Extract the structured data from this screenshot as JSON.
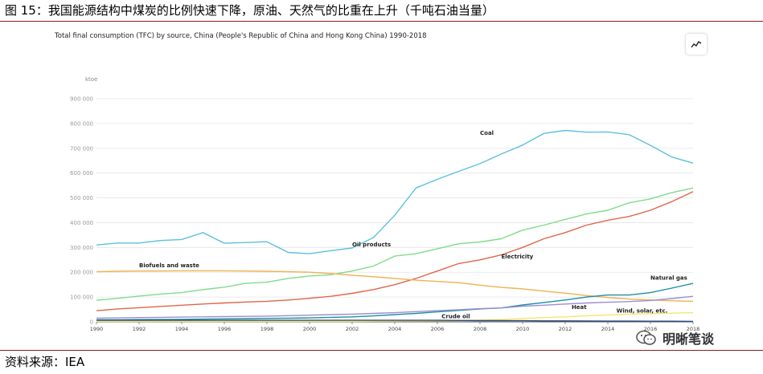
{
  "figure_title": "图 15：我国能源结构中煤炭的比例快速下降，原油、天然气的比重在上升（千吨石油当量）",
  "source_note": "资料来源：IEA",
  "watermark": {
    "text": "明晰笔谈",
    "icon": "wechat-icon"
  },
  "expand_icon": "expand-chart-icon",
  "colors": {
    "Coal": "#5cc0e0",
    "Oil products": "#7fdc8c",
    "Electricity": "#e0664a",
    "Biofuels and waste": "#f0b050",
    "Natural gas": "#1f8fa0",
    "Heat": "#9a8fd0",
    "Wind, solar, etc.": "#f5e66a",
    "Crude oil": "#2c4a80"
  },
  "chart_data": {
    "type": "line",
    "title": "Total final consumption (TFC) by source, China (People's Republic of China and Hong Kong China) 1990-2018",
    "ylabel": "ktoe",
    "xlabel": "",
    "ylim": [
      0,
      900000
    ],
    "yticks": [
      "0",
      "100 000",
      "200 000",
      "300 000",
      "400 000",
      "500 000",
      "600 000",
      "700 000",
      "800 000",
      "900 000"
    ],
    "x": [
      1990,
      1991,
      1992,
      1993,
      1994,
      1995,
      1996,
      1997,
      1998,
      1999,
      2000,
      2001,
      2002,
      2003,
      2004,
      2005,
      2006,
      2007,
      2008,
      2009,
      2010,
      2011,
      2012,
      2013,
      2014,
      2015,
      2016,
      2017,
      2018
    ],
    "xticks": [
      "1990",
      "1992",
      "1994",
      "1996",
      "1998",
      "2000",
      "2002",
      "2004",
      "2006",
      "2008",
      "2010",
      "2012",
      "2014",
      "2016",
      "2018"
    ],
    "series": [
      {
        "name": "Coal",
        "label": "Coal",
        "values": [
          310000,
          318000,
          318000,
          328000,
          332000,
          360000,
          317000,
          320000,
          323000,
          280000,
          275000,
          287000,
          298000,
          340000,
          430000,
          540000,
          575000,
          607000,
          638000,
          677000,
          713000,
          760000,
          772000,
          765000,
          766000,
          755000,
          712000,
          665000,
          640000
        ]
      },
      {
        "name": "Oil products",
        "label": "Oil products",
        "values": [
          87000,
          95000,
          104000,
          112000,
          118000,
          130000,
          140000,
          155000,
          160000,
          175000,
          185000,
          190000,
          205000,
          225000,
          265000,
          275000,
          295000,
          315000,
          322000,
          335000,
          370000,
          390000,
          413000,
          435000,
          450000,
          480000,
          496000,
          521000,
          540000
        ]
      },
      {
        "name": "Electricity",
        "label": "Electricity",
        "values": [
          45000,
          52000,
          57000,
          62000,
          67000,
          72000,
          76000,
          80000,
          83000,
          88000,
          95000,
          103000,
          115000,
          130000,
          150000,
          175000,
          205000,
          235000,
          250000,
          270000,
          300000,
          335000,
          360000,
          390000,
          410000,
          425000,
          450000,
          485000,
          525000
        ]
      },
      {
        "name": "Biofuels and waste",
        "label": "Biofuels and waste",
        "values": [
          202000,
          204000,
          205000,
          205000,
          206000,
          206000,
          206000,
          205000,
          204000,
          202000,
          200000,
          195000,
          188000,
          182000,
          175000,
          168000,
          163000,
          158000,
          148000,
          139000,
          133000,
          124000,
          116000,
          106000,
          98000,
          92000,
          88000,
          85000,
          83000
        ]
      },
      {
        "name": "Natural gas",
        "label": "Natural gas",
        "values": [
          8000,
          8500,
          9000,
          9500,
          10000,
          11000,
          12000,
          13000,
          14000,
          15000,
          16000,
          18000,
          20000,
          24000,
          29000,
          34000,
          40000,
          46000,
          52000,
          56000,
          68000,
          78000,
          88000,
          100000,
          108000,
          108000,
          118000,
          136000,
          155000
        ]
      },
      {
        "name": "Heat",
        "label": "Heat",
        "values": [
          15000,
          16000,
          17000,
          18000,
          19000,
          20000,
          21000,
          22000,
          23000,
          25000,
          27000,
          29000,
          31000,
          34000,
          37000,
          41000,
          45000,
          49000,
          53000,
          56000,
          63000,
          67000,
          72000,
          76000,
          79000,
          82000,
          86000,
          94000,
          103000
        ]
      },
      {
        "name": "Wind, solar, etc.",
        "label": "Wind, solar, etc.",
        "values": [
          2000,
          2000,
          2000,
          2000,
          2000,
          2000,
          2000,
          2000,
          2000,
          2000,
          2000,
          2000,
          2000,
          2500,
          3000,
          3500,
          4000,
          5000,
          7000,
          9000,
          13000,
          17000,
          20000,
          24000,
          28000,
          31000,
          33000,
          35000,
          37000
        ]
      },
      {
        "name": "Crude oil",
        "label": "Crude oil",
        "values": [
          6000,
          6000,
          6000,
          6000,
          6000,
          6000,
          6000,
          6000,
          6000,
          6000,
          6000,
          6000,
          6000,
          6000,
          6000,
          6000,
          6000,
          5500,
          5000,
          5000,
          4500,
          4000,
          4000,
          3500,
          3000,
          3000,
          2500,
          2500,
          2000
        ]
      }
    ],
    "annotations": [
      {
        "text": "Coal",
        "series": "Coal",
        "at_year": 2008,
        "value": 755000
      },
      {
        "text": "Oil products",
        "series": "Oil products",
        "at_year": 2002,
        "value": 305000
      },
      {
        "text": "Electricity",
        "series": "Electricity",
        "at_year": 2009,
        "value": 255000
      },
      {
        "text": "Biofuels and waste",
        "series": "Biofuels and waste",
        "at_year": 1992,
        "value": 220000
      },
      {
        "text": "Natural gas",
        "series": "Natural gas",
        "at_year": 2016,
        "value": 170000
      },
      {
        "text": "Heat",
        "series": "Heat",
        "at_year": 2012.3,
        "value": 52000
      },
      {
        "text": "Wind, solar, etc.",
        "series": "Wind, solar, etc.",
        "at_year": 2014.4,
        "value": 38000
      },
      {
        "text": "Crude oil",
        "series": "Crude oil",
        "at_year": 2006.2,
        "value": 14000
      }
    ],
    "grid": true,
    "legend": "inline"
  }
}
